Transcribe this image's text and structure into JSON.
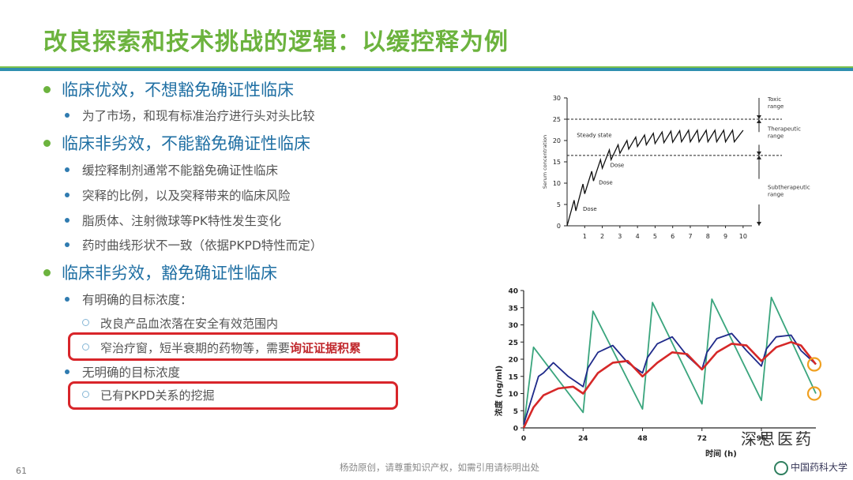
{
  "title": "改良探索和技术挑战的逻辑：以缓控释为例",
  "bullets": {
    "b1": "临床优效，不想豁免确证性临床",
    "b1_1": "为了市场，和现有标准治疗进行头对头比较",
    "b2": "临床非劣效，不能豁免确证性临床",
    "b2_1": "缓控释制剂通常不能豁免确证性临床",
    "b2_2": "突释的比例，以及突释带来的临床风险",
    "b2_3": "脂质体、注射微球等PK特性发生变化",
    "b2_4": "药时曲线形状不一致（依据PKPD特性而定）",
    "b3": "临床非劣效，豁免确证性临床",
    "b3_1": "有明确的目标浓度：",
    "b3_1_1": "改良产品血浓落在安全有效范围内",
    "b3_1_2_pre": "窄治疗窗，短半衰期的药物等，需要",
    "b3_1_2_hl": "询证证据积累",
    "b3_2": "无明确的目标浓度",
    "b3_2_1": "已有PKPD关系的挖掘"
  },
  "footer": "杨劲原创，请尊重知识产权，如需引用请标明出处",
  "page_number": "61",
  "logo_text": "中国药科大学",
  "watermark": "深思医药",
  "colors": {
    "title": "#6cb33e",
    "rule_blue": "#2f8fb0",
    "heading": "#1f6fa3",
    "highlight": "#c0282d",
    "box": "#d8252a"
  },
  "chart_data": [
    {
      "type": "line",
      "ylabel": "Serum concentration",
      "x_ticks": [
        "1",
        "2",
        "3",
        "4",
        "5",
        "6",
        "7",
        "8",
        "9",
        "10"
      ],
      "y_ticks": [
        "0",
        "5",
        "10",
        "15",
        "20",
        "25",
        "30"
      ],
      "ylim": [
        0,
        30
      ],
      "xlim": [
        0,
        10.5
      ],
      "thresholds": [
        25,
        16.5
      ],
      "annotations": [
        "Steady state",
        "Dose",
        "Dose",
        "Dose"
      ],
      "range_labels": {
        "toxic": [
          "Toxic",
          "range"
        ],
        "therapeutic": [
          "Therapeutic",
          "range"
        ],
        "subtherapeutic": [
          "Subtherapeutic",
          "range"
        ]
      },
      "series": [
        {
          "peaks_troughs": [
            [
              0,
              0
            ],
            [
              0.4,
              6
            ],
            [
              0.5,
              3.5
            ],
            [
              0.9,
              9.8
            ],
            [
              1,
              7.5
            ],
            [
              1.4,
              12.8
            ],
            [
              1.5,
              10.5
            ],
            [
              1.9,
              15.5
            ],
            [
              2,
              13.5
            ],
            [
              2.4,
              17.8
            ],
            [
              2.5,
              15.5
            ],
            [
              2.9,
              19
            ],
            [
              3,
              17
            ],
            [
              3.4,
              20
            ],
            [
              3.5,
              18
            ],
            [
              3.9,
              20.8
            ],
            [
              4,
              18.6
            ],
            [
              4.4,
              21.3
            ],
            [
              4.5,
              19
            ],
            [
              4.9,
              21.7
            ],
            [
              5,
              19.3
            ],
            [
              5.4,
              22
            ],
            [
              5.5,
              19.5
            ],
            [
              5.9,
              22.2
            ],
            [
              6,
              19.6
            ],
            [
              6.4,
              22.3
            ],
            [
              6.5,
              19.7
            ],
            [
              6.9,
              22.4
            ],
            [
              7,
              19.7
            ],
            [
              7.4,
              22.4
            ],
            [
              7.5,
              19.7
            ],
            [
              7.9,
              22.4
            ],
            [
              8,
              19.7
            ],
            [
              8.4,
              22.4
            ],
            [
              8.5,
              19.7
            ],
            [
              8.9,
              22.4
            ],
            [
              9,
              19.7
            ],
            [
              9.4,
              22.4
            ],
            [
              9.5,
              19.7
            ],
            [
              10,
              22.4
            ]
          ]
        }
      ]
    },
    {
      "type": "line",
      "xlabel": "时间 (h)",
      "ylabel": "浓度 (ng/ml)",
      "x_ticks": [
        "0",
        "24",
        "48",
        "72",
        "96"
      ],
      "y_ticks": [
        "0",
        "5",
        "10",
        "15",
        "20",
        "25",
        "30",
        "35",
        "40"
      ],
      "xlim": [
        0,
        118
      ],
      "ylim": [
        0,
        40
      ],
      "series": [
        {
          "color": "#3aa57d",
          "points": [
            [
              0,
              0
            ],
            [
              4,
              23.5
            ],
            [
              24,
              4.5
            ],
            [
              28,
              34
            ],
            [
              48,
              5.5
            ],
            [
              52,
              36.5
            ],
            [
              72,
              7
            ],
            [
              76,
              37.5
            ],
            [
              96,
              8
            ],
            [
              100,
              38
            ],
            [
              118,
              10
            ]
          ]
        },
        {
          "color": "#1f2a8a",
          "points": [
            [
              0,
              1
            ],
            [
              6,
              15
            ],
            [
              8,
              16
            ],
            [
              12,
              19
            ],
            [
              18,
              15
            ],
            [
              22,
              13
            ],
            [
              24,
              12
            ],
            [
              26,
              17.5
            ],
            [
              30,
              22
            ],
            [
              36,
              24
            ],
            [
              42,
              19
            ],
            [
              48,
              16
            ],
            [
              50,
              20.5
            ],
            [
              54,
              24.5
            ],
            [
              60,
              26.5
            ],
            [
              66,
              21
            ],
            [
              72,
              17
            ],
            [
              74,
              22
            ],
            [
              78,
              26
            ],
            [
              84,
              27.5
            ],
            [
              90,
              22.5
            ],
            [
              96,
              18
            ],
            [
              98,
              23
            ],
            [
              102,
              26.5
            ],
            [
              108,
              27
            ],
            [
              112,
              22.5
            ],
            [
              118,
              18.5
            ]
          ]
        },
        {
          "color": "#d62828",
          "points": [
            [
              0,
              0
            ],
            [
              4,
              6
            ],
            [
              8,
              9.5
            ],
            [
              14,
              11.5
            ],
            [
              20,
              12
            ],
            [
              24,
              10
            ],
            [
              30,
              16
            ],
            [
              36,
              19
            ],
            [
              42,
              19.5
            ],
            [
              48,
              15
            ],
            [
              54,
              19
            ],
            [
              60,
              22
            ],
            [
              66,
              21.5
            ],
            [
              72,
              17
            ],
            [
              78,
              22
            ],
            [
              84,
              24.5
            ],
            [
              90,
              24
            ],
            [
              96,
              19.5
            ],
            [
              102,
              23.5
            ],
            [
              108,
              25
            ],
            [
              112,
              24
            ],
            [
              118,
              18.5
            ]
          ]
        }
      ],
      "markers": [
        [
          118,
          18.5
        ],
        [
          118,
          10
        ]
      ]
    }
  ]
}
